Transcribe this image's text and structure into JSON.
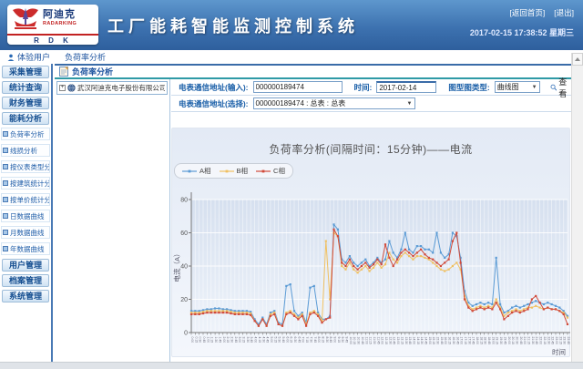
{
  "header": {
    "brand": {
      "name_cn": "阿迪克",
      "name_en": "RADARKING",
      "abbr": "R D K"
    },
    "title": "工厂能耗智能监测控制系统",
    "links": {
      "home": "[返回首页]",
      "logout": "[退出]"
    },
    "datetime": "2017-02-15 17:38:52 星期三"
  },
  "topbar": {
    "user": "体验用户",
    "page": "负荷率分析"
  },
  "sidebar": {
    "groups_top": [
      "采集管理",
      "统计查询",
      "财务管理",
      "能耗分析"
    ],
    "sub_items": [
      "负荷率分析",
      "线损分析",
      "按仪表类型分析",
      "按建筑统计分析",
      "按单价统计分析",
      "日数据曲线",
      "月数据曲线",
      "年数据曲线"
    ],
    "groups_bottom": [
      "用户管理",
      "档案管理",
      "系统管理"
    ]
  },
  "content": {
    "tab_title": "负荷率分析",
    "tree": {
      "company": "武汉阿迪克电子股份有限公司"
    },
    "form": {
      "address_input_label": "电表通信地址(输入):",
      "address_input_value": "000000189474",
      "time_label": "时间:",
      "time_value": "2017-02-14",
      "chart_type_label": "图型图类型:",
      "chart_type_value": "曲线图",
      "view_button": "查看",
      "address_select_label": "电表通信地址(选择):",
      "address_select_value": "000000189474 : 总表 : 总表"
    }
  },
  "chart_data": {
    "type": "line",
    "title": "负荷率分析(间隔时间：15分钟)——电流",
    "xlabel": "时间",
    "ylabel": "电流（A）",
    "ylim": [
      0,
      80
    ],
    "yticks": [
      0,
      20,
      40,
      60,
      80
    ],
    "grid": true,
    "legend_position": "top-left",
    "x": [
      "0:00",
      "0:15",
      "0:30",
      "0:45",
      "1:00",
      "1:15",
      "1:30",
      "1:45",
      "2:00",
      "2:15",
      "2:30",
      "2:45",
      "3:00",
      "3:15",
      "3:30",
      "3:45",
      "4:00",
      "4:15",
      "4:30",
      "4:45",
      "5:00",
      "5:15",
      "5:30",
      "5:45",
      "6:00",
      "6:15",
      "6:30",
      "6:45",
      "7:00",
      "7:15",
      "7:30",
      "7:45",
      "8:00",
      "8:15",
      "8:30",
      "8:45",
      "9:00",
      "9:15",
      "9:30",
      "9:45",
      "10:00",
      "10:15",
      "10:30",
      "10:45",
      "11:00",
      "11:15",
      "11:30",
      "11:45",
      "12:00",
      "12:15",
      "12:30",
      "12:45",
      "13:00",
      "13:15",
      "13:30",
      "13:45",
      "14:00",
      "14:15",
      "14:30",
      "14:45",
      "15:00",
      "15:15",
      "15:30",
      "15:45",
      "16:00",
      "16:15",
      "16:30",
      "16:45",
      "17:00",
      "17:15",
      "17:30",
      "17:45",
      "18:00",
      "18:15",
      "18:30",
      "18:45",
      "19:00",
      "19:15",
      "19:30",
      "19:45",
      "20:00",
      "20:15",
      "20:30",
      "20:45",
      "21:00",
      "21:15",
      "21:30",
      "21:45",
      "22:00",
      "22:15",
      "22:30",
      "22:45",
      "23:00",
      "23:15",
      "23:30",
      "23:45"
    ],
    "series": [
      {
        "name": "A相",
        "color": "#5b9bd5",
        "values": [
          13,
          13,
          13,
          13.5,
          14,
          14,
          14.5,
          14.5,
          14,
          14,
          13.5,
          13,
          13,
          13,
          13,
          12.5,
          8,
          5,
          9,
          5,
          12,
          13,
          6,
          5,
          28,
          29,
          13,
          10,
          12,
          6,
          27,
          28,
          12,
          8,
          8,
          10,
          65,
          62,
          44,
          42,
          46,
          42,
          40,
          42,
          44,
          40,
          42,
          45,
          42,
          44,
          55,
          48,
          45,
          50,
          60,
          50,
          48,
          52,
          52,
          50,
          50,
          48,
          60,
          48,
          45,
          47,
          60,
          58,
          45,
          25,
          18,
          16,
          17,
          18,
          17,
          18,
          17,
          45,
          17,
          12,
          13,
          15,
          16,
          15,
          16,
          17,
          18,
          19,
          18,
          17,
          18,
          17,
          16,
          15,
          13,
          10
        ]
      },
      {
        "name": "B相",
        "color": "#f0c061",
        "values": [
          12,
          12,
          12,
          12.5,
          13,
          13,
          13,
          13,
          13,
          13,
          12.5,
          12,
          12,
          12,
          12,
          11.5,
          7,
          4,
          8,
          4,
          11,
          12,
          5,
          4,
          12,
          13,
          11,
          9,
          11,
          5,
          12,
          13,
          11,
          7,
          55,
          20,
          60,
          58,
          40,
          38,
          42,
          38,
          36,
          38,
          40,
          37,
          39,
          42,
          39,
          41,
          48,
          44,
          42,
          46,
          48,
          46,
          44,
          46,
          46,
          45,
          44,
          42,
          40,
          38,
          37,
          38,
          40,
          42,
          38,
          22,
          16,
          14,
          15,
          16,
          15,
          16,
          15,
          20,
          15,
          10,
          12,
          13,
          14,
          13,
          14,
          15,
          15,
          16,
          15,
          14,
          15,
          14,
          14,
          13,
          12,
          9
        ]
      },
      {
        "name": "C相",
        "color": "#d14a3a",
        "values": [
          11,
          11,
          11,
          11.5,
          12,
          12,
          12,
          12,
          12,
          12,
          11.5,
          11,
          11,
          11,
          11,
          10.5,
          7,
          4,
          8,
          4,
          10,
          11,
          5,
          4,
          11,
          12,
          10,
          8,
          10,
          4,
          11,
          12,
          10,
          6,
          8,
          9,
          62,
          58,
          42,
          40,
          44,
          40,
          38,
          40,
          42,
          39,
          41,
          44,
          41,
          53,
          45,
          40,
          44,
          48,
          50,
          48,
          46,
          48,
          50,
          47,
          45,
          44,
          42,
          40,
          42,
          44,
          55,
          60,
          42,
          20,
          15,
          13,
          14,
          15,
          14,
          15,
          14,
          18,
          14,
          8,
          10,
          12,
          13,
          12,
          13,
          14,
          20,
          22,
          18,
          14,
          15,
          14,
          14,
          13,
          11,
          5
        ]
      }
    ]
  }
}
